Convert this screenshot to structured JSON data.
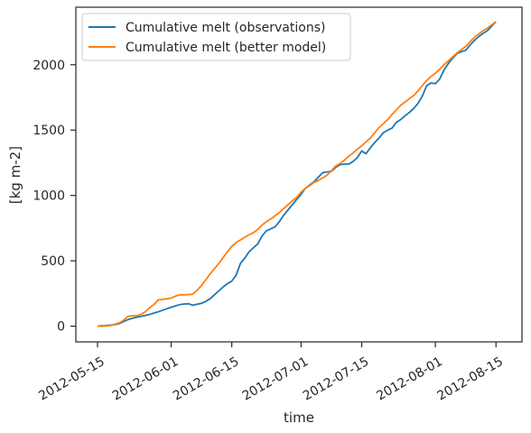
{
  "chart_data": {
    "type": "line",
    "title": "",
    "xlabel": "time",
    "ylabel": "[kg m-2]",
    "x_ticks": [
      "2012-05-15",
      "2012-06-01",
      "2012-06-15",
      "2012-07-01",
      "2012-07-15",
      "2012-08-01",
      "2012-08-15"
    ],
    "y_ticks": [
      0,
      500,
      1000,
      1500,
      2000
    ],
    "xlim": [
      "2012-05-10",
      "2012-08-21"
    ],
    "ylim": [
      -120,
      2440
    ],
    "grid": false,
    "legend_position": "top-left",
    "series": [
      {
        "name": "Cumulative melt (observations)",
        "color": "#1f77b4",
        "points": [
          [
            "2012-05-15",
            0
          ],
          [
            "2012-05-16",
            3
          ],
          [
            "2012-05-17",
            5
          ],
          [
            "2012-05-18",
            8
          ],
          [
            "2012-05-19",
            12
          ],
          [
            "2012-05-20",
            20
          ],
          [
            "2012-05-21",
            35
          ],
          [
            "2012-05-22",
            50
          ],
          [
            "2012-05-23",
            60
          ],
          [
            "2012-05-24",
            68
          ],
          [
            "2012-05-25",
            75
          ],
          [
            "2012-05-26",
            82
          ],
          [
            "2012-05-27",
            90
          ],
          [
            "2012-05-28",
            100
          ],
          [
            "2012-05-29",
            110
          ],
          [
            "2012-05-30",
            122
          ],
          [
            "2012-05-31",
            133
          ],
          [
            "2012-06-01",
            145
          ],
          [
            "2012-06-02",
            155
          ],
          [
            "2012-06-03",
            165
          ],
          [
            "2012-06-04",
            170
          ],
          [
            "2012-06-05",
            172
          ],
          [
            "2012-06-06",
            160
          ],
          [
            "2012-06-07",
            168
          ],
          [
            "2012-06-08",
            175
          ],
          [
            "2012-06-09",
            190
          ],
          [
            "2012-06-10",
            210
          ],
          [
            "2012-06-11",
            240
          ],
          [
            "2012-06-12",
            270
          ],
          [
            "2012-06-13",
            300
          ],
          [
            "2012-06-14",
            325
          ],
          [
            "2012-06-15",
            345
          ],
          [
            "2012-06-16",
            390
          ],
          [
            "2012-06-17",
            480
          ],
          [
            "2012-06-18",
            520
          ],
          [
            "2012-06-19",
            570
          ],
          [
            "2012-06-20",
            600
          ],
          [
            "2012-06-21",
            630
          ],
          [
            "2012-06-22",
            690
          ],
          [
            "2012-06-23",
            730
          ],
          [
            "2012-06-24",
            745
          ],
          [
            "2012-06-25",
            760
          ],
          [
            "2012-06-26",
            800
          ],
          [
            "2012-06-27",
            850
          ],
          [
            "2012-06-28",
            890
          ],
          [
            "2012-06-29",
            930
          ],
          [
            "2012-06-30",
            970
          ],
          [
            "2012-07-01",
            1010
          ],
          [
            "2012-07-02",
            1055
          ],
          [
            "2012-07-03",
            1080
          ],
          [
            "2012-07-04",
            1105
          ],
          [
            "2012-07-05",
            1140
          ],
          [
            "2012-07-06",
            1175
          ],
          [
            "2012-07-07",
            1180
          ],
          [
            "2012-07-08",
            1185
          ],
          [
            "2012-07-09",
            1215
          ],
          [
            "2012-07-10",
            1235
          ],
          [
            "2012-07-11",
            1240
          ],
          [
            "2012-07-12",
            1240
          ],
          [
            "2012-07-13",
            1260
          ],
          [
            "2012-07-14",
            1290
          ],
          [
            "2012-07-15",
            1340
          ],
          [
            "2012-07-16",
            1320
          ],
          [
            "2012-07-17",
            1365
          ],
          [
            "2012-07-18",
            1405
          ],
          [
            "2012-07-19",
            1440
          ],
          [
            "2012-07-20",
            1480
          ],
          [
            "2012-07-21",
            1500
          ],
          [
            "2012-07-22",
            1515
          ],
          [
            "2012-07-23",
            1560
          ],
          [
            "2012-07-24",
            1580
          ],
          [
            "2012-07-25",
            1610
          ],
          [
            "2012-07-26",
            1635
          ],
          [
            "2012-07-27",
            1665
          ],
          [
            "2012-07-28",
            1705
          ],
          [
            "2012-07-29",
            1760
          ],
          [
            "2012-07-30",
            1840
          ],
          [
            "2012-07-31",
            1860
          ],
          [
            "2012-08-01",
            1855
          ],
          [
            "2012-08-02",
            1890
          ],
          [
            "2012-08-03",
            1960
          ],
          [
            "2012-08-04",
            2010
          ],
          [
            "2012-08-05",
            2050
          ],
          [
            "2012-08-06",
            2085
          ],
          [
            "2012-08-07",
            2100
          ],
          [
            "2012-08-08",
            2110
          ],
          [
            "2012-08-09",
            2150
          ],
          [
            "2012-08-10",
            2185
          ],
          [
            "2012-08-11",
            2215
          ],
          [
            "2012-08-12",
            2240
          ],
          [
            "2012-08-13",
            2260
          ],
          [
            "2012-08-14",
            2295
          ],
          [
            "2012-08-15",
            2330
          ]
        ]
      },
      {
        "name": "Cumulative melt (better model)",
        "color": "#ff7f0e",
        "points": [
          [
            "2012-05-15",
            0
          ],
          [
            "2012-05-16",
            0
          ],
          [
            "2012-05-17",
            2
          ],
          [
            "2012-05-18",
            5
          ],
          [
            "2012-05-19",
            15
          ],
          [
            "2012-05-20",
            25
          ],
          [
            "2012-05-21",
            45
          ],
          [
            "2012-05-22",
            75
          ],
          [
            "2012-05-23",
            80
          ],
          [
            "2012-05-24",
            80
          ],
          [
            "2012-05-25",
            90
          ],
          [
            "2012-05-26",
            110
          ],
          [
            "2012-05-27",
            140
          ],
          [
            "2012-05-28",
            165
          ],
          [
            "2012-05-29",
            200
          ],
          [
            "2012-05-30",
            205
          ],
          [
            "2012-05-31",
            210
          ],
          [
            "2012-06-01",
            215
          ],
          [
            "2012-06-02",
            230
          ],
          [
            "2012-06-03",
            240
          ],
          [
            "2012-06-04",
            240
          ],
          [
            "2012-06-05",
            242
          ],
          [
            "2012-06-06",
            245
          ],
          [
            "2012-06-07",
            275
          ],
          [
            "2012-06-08",
            310
          ],
          [
            "2012-06-09",
            355
          ],
          [
            "2012-06-10",
            400
          ],
          [
            "2012-06-11",
            440
          ],
          [
            "2012-06-12",
            480
          ],
          [
            "2012-06-13",
            525
          ],
          [
            "2012-06-14",
            570
          ],
          [
            "2012-06-15",
            610
          ],
          [
            "2012-06-16",
            640
          ],
          [
            "2012-06-17",
            660
          ],
          [
            "2012-06-18",
            680
          ],
          [
            "2012-06-19",
            700
          ],
          [
            "2012-06-20",
            715
          ],
          [
            "2012-06-21",
            740
          ],
          [
            "2012-06-22",
            775
          ],
          [
            "2012-06-23",
            800
          ],
          [
            "2012-06-24",
            820
          ],
          [
            "2012-06-25",
            845
          ],
          [
            "2012-06-26",
            870
          ],
          [
            "2012-06-27",
            900
          ],
          [
            "2012-06-28",
            930
          ],
          [
            "2012-06-29",
            960
          ],
          [
            "2012-06-30",
            985
          ],
          [
            "2012-07-01",
            1025
          ],
          [
            "2012-07-02",
            1055
          ],
          [
            "2012-07-03",
            1075
          ],
          [
            "2012-07-04",
            1100
          ],
          [
            "2012-07-05",
            1115
          ],
          [
            "2012-07-06",
            1135
          ],
          [
            "2012-07-07",
            1155
          ],
          [
            "2012-07-08",
            1190
          ],
          [
            "2012-07-09",
            1225
          ],
          [
            "2012-07-10",
            1245
          ],
          [
            "2012-07-11",
            1270
          ],
          [
            "2012-07-12",
            1300
          ],
          [
            "2012-07-13",
            1325
          ],
          [
            "2012-07-14",
            1355
          ],
          [
            "2012-07-15",
            1380
          ],
          [
            "2012-07-16",
            1410
          ],
          [
            "2012-07-17",
            1440
          ],
          [
            "2012-07-18",
            1480
          ],
          [
            "2012-07-19",
            1520
          ],
          [
            "2012-07-20",
            1550
          ],
          [
            "2012-07-21",
            1580
          ],
          [
            "2012-07-22",
            1620
          ],
          [
            "2012-07-23",
            1655
          ],
          [
            "2012-07-24",
            1690
          ],
          [
            "2012-07-25",
            1715
          ],
          [
            "2012-07-26",
            1740
          ],
          [
            "2012-07-27",
            1765
          ],
          [
            "2012-07-28",
            1800
          ],
          [
            "2012-07-29",
            1840
          ],
          [
            "2012-07-30",
            1880
          ],
          [
            "2012-07-31",
            1910
          ],
          [
            "2012-08-01",
            1935
          ],
          [
            "2012-08-02",
            1965
          ],
          [
            "2012-08-03",
            2000
          ],
          [
            "2012-08-04",
            2030
          ],
          [
            "2012-08-05",
            2060
          ],
          [
            "2012-08-06",
            2090
          ],
          [
            "2012-08-07",
            2115
          ],
          [
            "2012-08-08",
            2140
          ],
          [
            "2012-08-09",
            2175
          ],
          [
            "2012-08-10",
            2210
          ],
          [
            "2012-08-11",
            2235
          ],
          [
            "2012-08-12",
            2260
          ],
          [
            "2012-08-13",
            2280
          ],
          [
            "2012-08-14",
            2305
          ],
          [
            "2012-08-15",
            2330
          ]
        ]
      }
    ]
  }
}
